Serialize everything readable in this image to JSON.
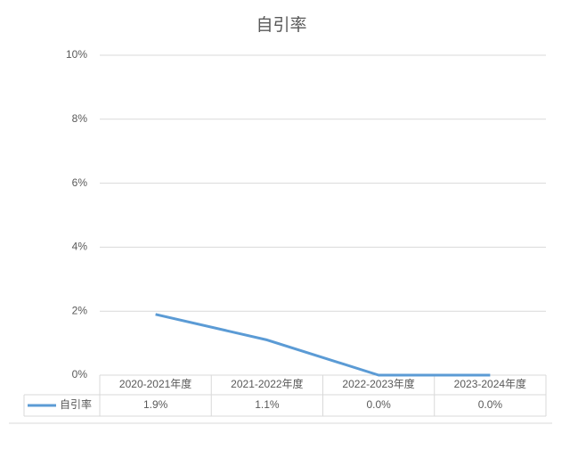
{
  "chart_data": {
    "type": "line",
    "title": "自引率",
    "categories": [
      "2020-2021年度",
      "2021-2022年度",
      "2022-2023年度",
      "2023-2024年度"
    ],
    "series": [
      {
        "name": "自引率",
        "color": "#5b9bd5",
        "values": [
          1.9,
          1.1,
          0.0,
          0.0
        ],
        "value_labels": [
          "1.9%",
          "1.1%",
          "0.0%",
          "0.0%"
        ]
      }
    ],
    "ylim": [
      0,
      10
    ],
    "yticks": [
      {
        "value": 0,
        "label": "0%"
      },
      {
        "value": 2,
        "label": "2%"
      },
      {
        "value": 4,
        "label": "4%"
      },
      {
        "value": 6,
        "label": "6%"
      },
      {
        "value": 8,
        "label": "8%"
      },
      {
        "value": 10,
        "label": "10%"
      }
    ],
    "grid": true,
    "legend": "bottom"
  }
}
